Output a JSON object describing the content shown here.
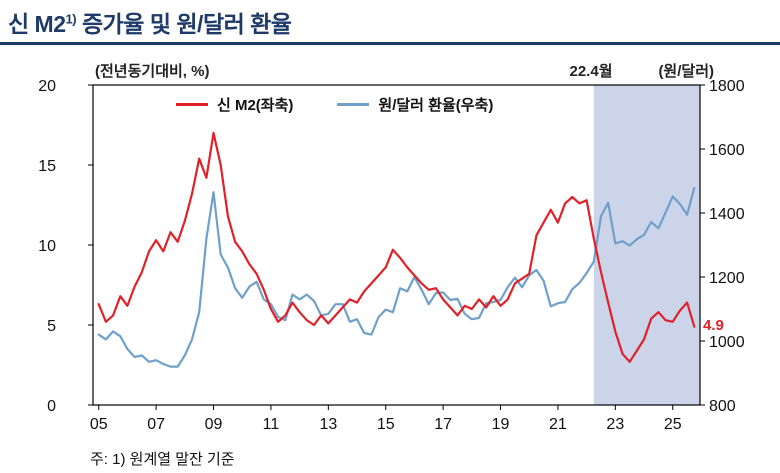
{
  "colors": {
    "title_navy": "#1e3a68",
    "m2_red": "#e02128",
    "fx_blue": "#6fa0ca",
    "shade": "#ccd4ea"
  },
  "header": {
    "title_prefix": "신 M2",
    "title_sup": "1)",
    "title_suffix": " 증가율 및 원/달러 환율"
  },
  "labels": {
    "left_axis_unit": "(전년동기대비, %)",
    "right_axis_unit": "(원/달러)",
    "shade_annotation": "22.4월",
    "last_value_annotation": "4.9"
  },
  "legend": {
    "m2": "신 M2(좌축)",
    "fx": "원/달러 환율(우축)"
  },
  "footnote": "주: 1) 원계열 말잔 기준",
  "chart_data": {
    "type": "line",
    "title": "신 M2 증가율 및 원/달러 환율",
    "left_ylabel": "(전년동기대비, %)",
    "right_ylabel": "(원/달러)",
    "xlim": [
      2004.8,
      2025.95
    ],
    "left_ylim": [
      0,
      20
    ],
    "right_ylim": [
      800,
      1800
    ],
    "left_ticks": [
      0,
      5,
      10,
      15,
      20
    ],
    "right_ticks": [
      800,
      1000,
      1200,
      1400,
      1600,
      1800
    ],
    "x_ticks": [
      {
        "v": 2005,
        "label": "05"
      },
      {
        "v": 2007,
        "label": "07"
      },
      {
        "v": 2009,
        "label": "09"
      },
      {
        "v": 2011,
        "label": "11"
      },
      {
        "v": 2013,
        "label": "13"
      },
      {
        "v": 2015,
        "label": "15"
      },
      {
        "v": 2017,
        "label": "17"
      },
      {
        "v": 2019,
        "label": "19"
      },
      {
        "v": 2021,
        "label": "21"
      },
      {
        "v": 2023,
        "label": "23"
      },
      {
        "v": 2025,
        "label": "25"
      }
    ],
    "shaded_region": {
      "from": 2022.25,
      "to": 2025.95,
      "color": "#ccd4ea",
      "label": "22.4월"
    },
    "x": [
      2005.0,
      2005.25,
      2005.5,
      2005.75,
      2006.0,
      2006.25,
      2006.5,
      2006.75,
      2007.0,
      2007.25,
      2007.5,
      2007.75,
      2008.0,
      2008.25,
      2008.5,
      2008.75,
      2009.0,
      2009.25,
      2009.5,
      2009.75,
      2010.0,
      2010.25,
      2010.5,
      2010.75,
      2011.0,
      2011.25,
      2011.5,
      2011.75,
      2012.0,
      2012.25,
      2012.5,
      2012.75,
      2013.0,
      2013.25,
      2013.5,
      2013.75,
      2014.0,
      2014.25,
      2014.5,
      2014.75,
      2015.0,
      2015.25,
      2015.5,
      2015.75,
      2016.0,
      2016.25,
      2016.5,
      2016.75,
      2017.0,
      2017.25,
      2017.5,
      2017.75,
      2018.0,
      2018.25,
      2018.5,
      2018.75,
      2019.0,
      2019.25,
      2019.5,
      2019.75,
      2020.0,
      2020.25,
      2020.5,
      2020.75,
      2021.0,
      2021.25,
      2021.5,
      2021.75,
      2022.0,
      2022.25,
      2022.5,
      2022.75,
      2023.0,
      2023.25,
      2023.5,
      2023.75,
      2024.0,
      2024.25,
      2024.5,
      2024.75,
      2025.0,
      2025.25,
      2025.5,
      2025.75
    ],
    "series": [
      {
        "name": "신 M2(좌축)",
        "axis": "left",
        "color": "#e02128",
        "values": [
          6.3,
          5.2,
          5.6,
          6.8,
          6.2,
          7.4,
          8.3,
          9.6,
          10.3,
          9.6,
          10.8,
          10.2,
          11.5,
          13.2,
          15.4,
          14.2,
          17.0,
          15.0,
          11.8,
          10.2,
          9.6,
          8.8,
          8.2,
          7.2,
          6.0,
          5.2,
          5.6,
          6.4,
          5.8,
          5.3,
          5.0,
          5.6,
          5.1,
          5.6,
          6.1,
          6.6,
          6.4,
          7.1,
          7.6,
          8.1,
          8.6,
          9.7,
          9.2,
          8.6,
          8.1,
          7.6,
          7.2,
          7.3,
          6.6,
          6.1,
          5.6,
          6.2,
          6.0,
          6.6,
          6.1,
          6.8,
          6.2,
          6.6,
          7.6,
          7.9,
          8.2,
          10.6,
          11.4,
          12.2,
          11.4,
          12.6,
          13.0,
          12.6,
          12.8,
          10.4,
          8.3,
          6.4,
          4.6,
          3.2,
          2.7,
          3.4,
          4.1,
          5.4,
          5.8,
          5.3,
          5.2,
          5.9,
          6.4,
          4.9
        ]
      },
      {
        "name": "원/달러 환율(우축)",
        "axis": "right",
        "color": "#6fa0ca",
        "values": [
          1020,
          1005,
          1030,
          1015,
          975,
          950,
          955,
          935,
          940,
          928,
          920,
          920,
          955,
          1005,
          1090,
          1320,
          1465,
          1270,
          1230,
          1165,
          1135,
          1170,
          1185,
          1130,
          1115,
          1075,
          1065,
          1145,
          1130,
          1145,
          1125,
          1080,
          1085,
          1115,
          1115,
          1060,
          1068,
          1025,
          1020,
          1075,
          1098,
          1090,
          1165,
          1155,
          1200,
          1160,
          1115,
          1150,
          1152,
          1128,
          1132,
          1085,
          1068,
          1072,
          1118,
          1122,
          1128,
          1168,
          1198,
          1168,
          1205,
          1222,
          1188,
          1108,
          1118,
          1122,
          1162,
          1182,
          1212,
          1248,
          1390,
          1432,
          1305,
          1312,
          1298,
          1318,
          1332,
          1372,
          1352,
          1402,
          1452,
          1428,
          1395,
          1478
        ]
      }
    ]
  }
}
